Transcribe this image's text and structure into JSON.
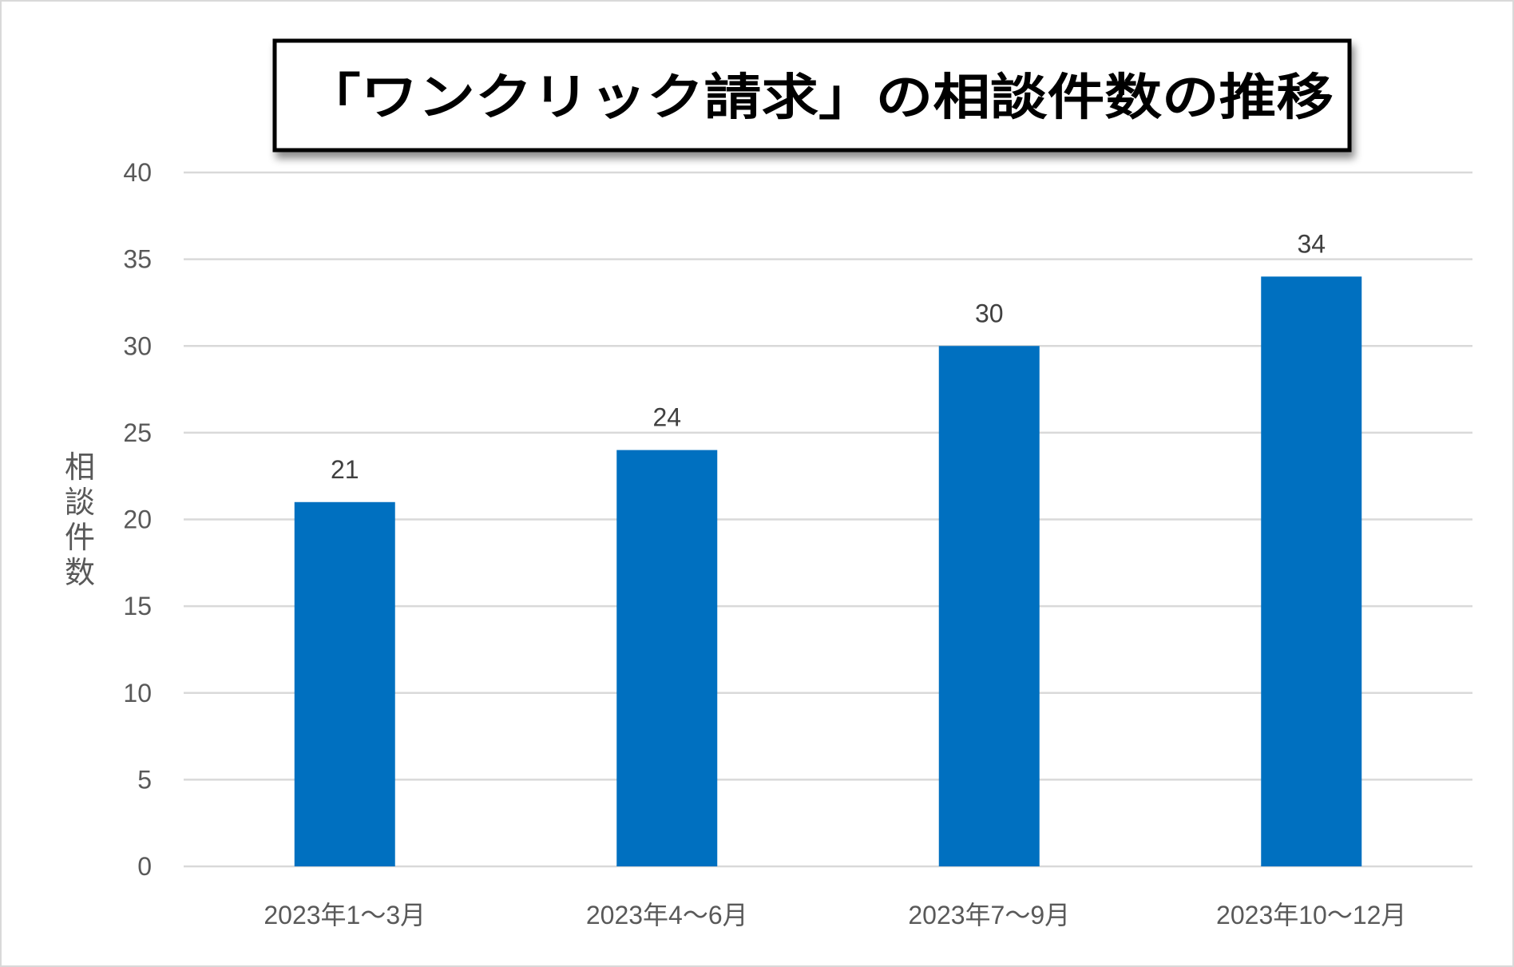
{
  "chart_data": {
    "type": "bar",
    "title": "「ワンクリック請求」の相談件数の推移",
    "xlabel": "",
    "ylabel": "相談件数",
    "categories": [
      "2023年1～3月",
      "2023年4～6月",
      "2023年7～9月",
      "2023年10～12月"
    ],
    "values": [
      21,
      24,
      30,
      34
    ],
    "ylim": [
      0,
      40
    ],
    "yticks": [
      0,
      5,
      10,
      15,
      20,
      25,
      30,
      35,
      40
    ],
    "grid": true,
    "data_labels": true,
    "colors": {
      "bar": "#0070C0",
      "grid": "#d9d9d9"
    }
  }
}
